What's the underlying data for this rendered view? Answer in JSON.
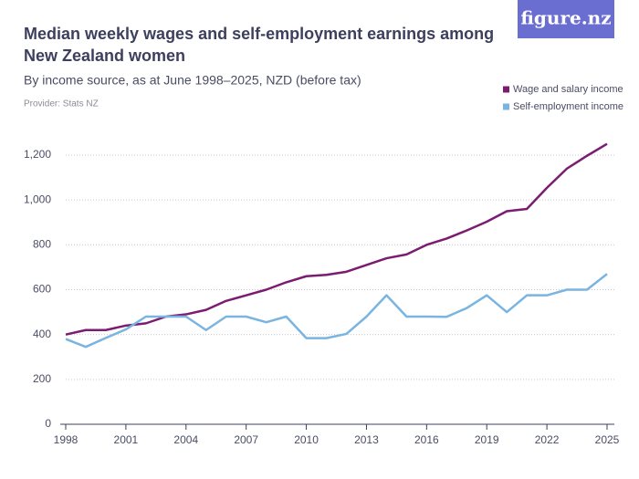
{
  "logo": "figure.nz",
  "chart_data": {
    "type": "line",
    "title": "Median weekly wages and self-employment earnings among New Zealand women",
    "title_lines": [
      "Median weekly wages and self-employment earnings among",
      "New Zealand women"
    ],
    "subtitle": "By income source, as at June 1998–2025, NZD (before tax)",
    "provider": "Provider: Stats NZ",
    "x": [
      1998,
      1999,
      2000,
      2001,
      2002,
      2003,
      2004,
      2005,
      2006,
      2007,
      2008,
      2009,
      2010,
      2011,
      2012,
      2013,
      2014,
      2015,
      2016,
      2017,
      2018,
      2019,
      2020,
      2021,
      2022,
      2023,
      2024,
      2025
    ],
    "series": [
      {
        "name": "Wage and salary income",
        "color": "#7b1c71",
        "values": [
          400,
          420,
          420,
          440,
          450,
          480,
          490,
          510,
          550,
          575,
          600,
          633,
          660,
          666,
          680,
          710,
          740,
          757,
          800,
          828,
          864,
          903,
          950,
          960,
          1054,
          1140,
          1197,
          1250
        ]
      },
      {
        "name": "Self-employment income",
        "color": "#7ab4e0",
        "values": [
          380,
          345,
          385,
          423,
          480,
          480,
          480,
          420,
          480,
          480,
          455,
          480,
          384,
          384,
          403,
          480,
          575,
          480,
          480,
          479,
          518,
          575,
          500,
          575,
          575,
          600,
          600,
          670
        ]
      }
    ],
    "xlim": [
      1998,
      2025
    ],
    "xticks": [
      1998,
      2001,
      2004,
      2007,
      2010,
      2013,
      2016,
      2019,
      2022,
      2025
    ],
    "ylim": [
      0,
      1200
    ],
    "yticks": [
      0,
      200,
      400,
      600,
      800,
      {
        "value": 1000,
        "label": "1,000"
      },
      {
        "value": 1200,
        "label": "1,200"
      }
    ],
    "grid": true,
    "legend": "top-right"
  }
}
